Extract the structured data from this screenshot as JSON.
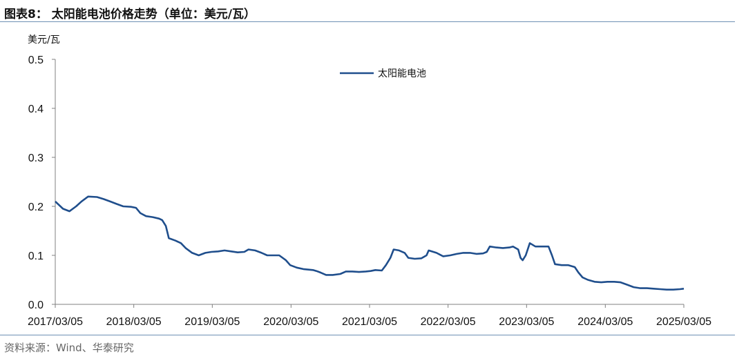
{
  "header": {
    "title": "图表8：  太阳能电池价格走势（单位：美元/瓦）"
  },
  "footer": {
    "source": "资料来源：Wind、华泰研究"
  },
  "colors": {
    "series": "#1f4e8c",
    "rule": "#6d8fb3",
    "axis": "#7f7f7f"
  },
  "chart_data": {
    "type": "line",
    "title": "",
    "ylabel": "美元/瓦",
    "xlabel": "",
    "ylim": [
      0,
      0.5
    ],
    "yticks": [
      0,
      0.1,
      0.2,
      0.3,
      0.4,
      0.5
    ],
    "ytick_labels": [
      "0.0",
      "0.1",
      "0.2",
      "0.3",
      "0.4",
      "0.5"
    ],
    "xticks": [
      "2017/03/05",
      "2018/03/05",
      "2019/03/05",
      "2020/03/05",
      "2021/03/05",
      "2022/03/05",
      "2023/03/05",
      "2024/03/05",
      "2025/03/05"
    ],
    "xlim": [
      "2017/03/05",
      "2025/03/05"
    ],
    "legend": "top-center",
    "grid": false,
    "series": [
      {
        "name": "太阳能电池",
        "points": [
          [
            "2017/03/05",
            0.21
          ],
          [
            "2017/04/10",
            0.195
          ],
          [
            "2017/05/10",
            0.19
          ],
          [
            "2017/06/10",
            0.2
          ],
          [
            "2017/07/05",
            0.21
          ],
          [
            "2017/08/05",
            0.22
          ],
          [
            "2017/09/15",
            0.219
          ],
          [
            "2017/10/15",
            0.215
          ],
          [
            "2017/11/15",
            0.21
          ],
          [
            "2017/12/15",
            0.205
          ],
          [
            "2018/01/15",
            0.2
          ],
          [
            "2018/02/20",
            0.199
          ],
          [
            "2018/03/15",
            0.197
          ],
          [
            "2018/04/05",
            0.186
          ],
          [
            "2018/05/01",
            0.18
          ],
          [
            "2018/06/01",
            0.178
          ],
          [
            "2018/07/01",
            0.175
          ],
          [
            "2018/07/15",
            0.172
          ],
          [
            "2018/08/01",
            0.16
          ],
          [
            "2018/08/15",
            0.135
          ],
          [
            "2018/09/15",
            0.13
          ],
          [
            "2018/10/10",
            0.125
          ],
          [
            "2018/11/01",
            0.115
          ],
          [
            "2018/12/01",
            0.105
          ],
          [
            "2019/01/01",
            0.1
          ],
          [
            "2019/02/01",
            0.105
          ],
          [
            "2019/03/01",
            0.107
          ],
          [
            "2019/04/01",
            0.108
          ],
          [
            "2019/05/01",
            0.11
          ],
          [
            "2019/06/01",
            0.108
          ],
          [
            "2019/07/01",
            0.106
          ],
          [
            "2019/08/01",
            0.107
          ],
          [
            "2019/08/20",
            0.112
          ],
          [
            "2019/09/20",
            0.11
          ],
          [
            "2019/10/20",
            0.105
          ],
          [
            "2019/11/15",
            0.1
          ],
          [
            "2020/01/10",
            0.1
          ],
          [
            "2020/02/10",
            0.09
          ],
          [
            "2020/03/01",
            0.08
          ],
          [
            "2020/04/01",
            0.075
          ],
          [
            "2020/05/01",
            0.072
          ],
          [
            "2020/06/15",
            0.07
          ],
          [
            "2020/07/01",
            0.068
          ],
          [
            "2020/07/20",
            0.065
          ],
          [
            "2020/08/15",
            0.06
          ],
          [
            "2020/09/15",
            0.06
          ],
          [
            "2020/10/20",
            0.062
          ],
          [
            "2020/11/15",
            0.067
          ],
          [
            "2020/12/15",
            0.067
          ],
          [
            "2021/01/15",
            0.066
          ],
          [
            "2021/02/15",
            0.067
          ],
          [
            "2021/03/10",
            0.068
          ],
          [
            "2021/04/01",
            0.07
          ],
          [
            "2021/05/01",
            0.069
          ],
          [
            "2021/05/20",
            0.08
          ],
          [
            "2021/06/10",
            0.095
          ],
          [
            "2021/06/25",
            0.112
          ],
          [
            "2021/07/20",
            0.11
          ],
          [
            "2021/08/15",
            0.105
          ],
          [
            "2021/09/01",
            0.095
          ],
          [
            "2021/10/01",
            0.093
          ],
          [
            "2021/11/01",
            0.094
          ],
          [
            "2021/11/25",
            0.1
          ],
          [
            "2021/12/05",
            0.11
          ],
          [
            "2022/01/10",
            0.105
          ],
          [
            "2022/02/10",
            0.098
          ],
          [
            "2022/03/15",
            0.1
          ],
          [
            "2022/04/15",
            0.103
          ],
          [
            "2022/05/15",
            0.105
          ],
          [
            "2022/06/15",
            0.105
          ],
          [
            "2022/07/15",
            0.103
          ],
          [
            "2022/08/15",
            0.104
          ],
          [
            "2022/09/01",
            0.107
          ],
          [
            "2022/09/15",
            0.118
          ],
          [
            "2022/10/15",
            0.116
          ],
          [
            "2022/11/15",
            0.115
          ],
          [
            "2022/12/15",
            0.116
          ],
          [
            "2023/01/01",
            0.118
          ],
          [
            "2023/01/25",
            0.112
          ],
          [
            "2023/02/05",
            0.095
          ],
          [
            "2023/02/15",
            0.09
          ],
          [
            "2023/03/01",
            0.1
          ],
          [
            "2023/03/20",
            0.125
          ],
          [
            "2023/04/15",
            0.118
          ],
          [
            "2023/05/15",
            0.118
          ],
          [
            "2023/06/15",
            0.118
          ],
          [
            "2023/07/01",
            0.1
          ],
          [
            "2023/07/15",
            0.082
          ],
          [
            "2023/08/15",
            0.08
          ],
          [
            "2023/09/15",
            0.08
          ],
          [
            "2023/10/15",
            0.076
          ],
          [
            "2023/11/01",
            0.065
          ],
          [
            "2023/11/20",
            0.055
          ],
          [
            "2023/12/15",
            0.05
          ],
          [
            "2024/01/15",
            0.046
          ],
          [
            "2024/02/15",
            0.045
          ],
          [
            "2024/03/15",
            0.046
          ],
          [
            "2024/04/15",
            0.046
          ],
          [
            "2024/05/15",
            0.045
          ],
          [
            "2024/06/15",
            0.04
          ],
          [
            "2024/07/15",
            0.035
          ],
          [
            "2024/08/15",
            0.033
          ],
          [
            "2024/09/15",
            0.033
          ],
          [
            "2024/10/15",
            0.032
          ],
          [
            "2024/11/15",
            0.031
          ],
          [
            "2024/12/15",
            0.03
          ],
          [
            "2025/01/15",
            0.03
          ],
          [
            "2025/02/15",
            0.031
          ],
          [
            "2025/03/05",
            0.032
          ]
        ]
      }
    ]
  }
}
